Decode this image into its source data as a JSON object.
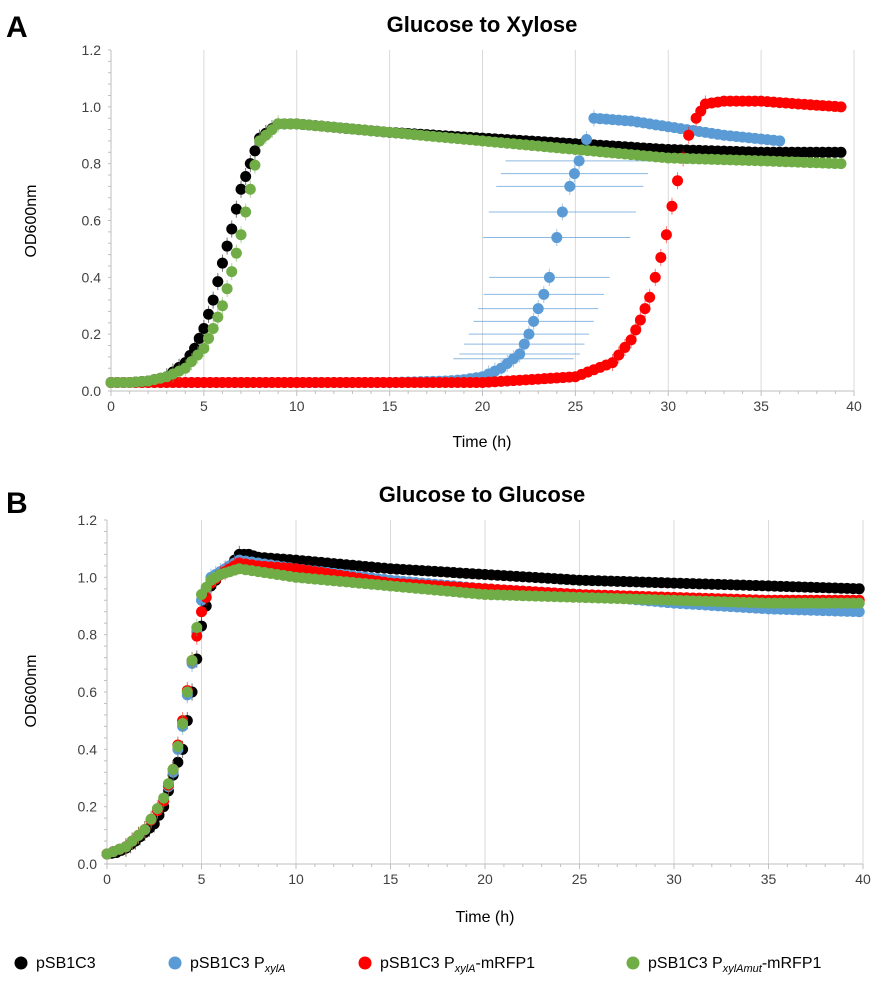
{
  "colors": {
    "pSB1C3": "#000000",
    "pSB1C3 PxylA": "#5B9BD5",
    "pSB1C3 PxylA-mRFP1": "#FF0000",
    "pSB1C3 PxylAmut-mRFP1": "#70AD47"
  },
  "legend": [
    {
      "key": "pSB1C3",
      "text": "pSB1C3",
      "sub": "",
      "suffix": ""
    },
    {
      "key": "pSB1C3 PxylA",
      "text": "pSB1C3 P",
      "sub": "xylA",
      "suffix": ""
    },
    {
      "key": "pSB1C3 PxylA-mRFP1",
      "text": "pSB1C3 P",
      "sub": "xylA",
      "suffix": "-mRFP1"
    },
    {
      "key": "pSB1C3 PxylAmut-mRFP1",
      "text": "pSB1C3 P",
      "sub": "xylAmut",
      "suffix": "-mRFP1"
    }
  ],
  "chart_data": [
    {
      "panel": "A",
      "type": "scatter",
      "title": "Glucose to Xylose",
      "xlabel": "Time (h)",
      "ylabel": "OD600nm",
      "xlim": [
        0,
        40
      ],
      "ylim": [
        0,
        1.2
      ],
      "xticks": [
        0,
        5,
        10,
        15,
        20,
        25,
        30,
        35,
        40
      ],
      "yticks": [
        "0.0",
        "0.2",
        "0.4",
        "0.6",
        "0.8",
        "1.0",
        "1.2"
      ],
      "grid": "vertical",
      "series": [
        {
          "name": "pSB1C3",
          "x": [
            0,
            1,
            2,
            3,
            4,
            4.5,
            5,
            5.5,
            6,
            6.5,
            7,
            7.5,
            8,
            9,
            10,
            15,
            20,
            25,
            30,
            35,
            39.3
          ],
          "y": [
            0.03,
            0.03,
            0.035,
            0.05,
            0.1,
            0.15,
            0.22,
            0.32,
            0.45,
            0.57,
            0.71,
            0.8,
            0.89,
            0.94,
            0.94,
            0.91,
            0.89,
            0.87,
            0.85,
            0.84,
            0.84
          ]
        },
        {
          "name": "pSB1C3 PxylA",
          "x": [
            0,
            5,
            10,
            15,
            18,
            19,
            20,
            21,
            22,
            22.5,
            23,
            23.3,
            23.6,
            24,
            24.3,
            24.7,
            25.2,
            26,
            28,
            30,
            33,
            36
          ],
          "y": [
            0.03,
            0.03,
            0.03,
            0.03,
            0.035,
            0.04,
            0.05,
            0.08,
            0.13,
            0.2,
            0.29,
            0.34,
            0.4,
            0.54,
            0.63,
            0.72,
            0.81,
            0.96,
            0.95,
            0.93,
            0.9,
            0.88
          ]
        },
        {
          "name": "pSB1C3 PxylA-mRFP1",
          "x": [
            0,
            5,
            10,
            15,
            20,
            25,
            27,
            28,
            28.5,
            29,
            29.3,
            29.6,
            29.9,
            30.2,
            30.5,
            30.8,
            31.1,
            31.5,
            32,
            33,
            35,
            37,
            39.3
          ],
          "y": [
            0.03,
            0.03,
            0.03,
            0.03,
            0.03,
            0.05,
            0.1,
            0.18,
            0.25,
            0.33,
            0.4,
            0.47,
            0.55,
            0.65,
            0.74,
            0.82,
            0.9,
            0.96,
            1.01,
            1.02,
            1.02,
            1.01,
            1.0
          ]
        },
        {
          "name": "pSB1C3 PxylAmut-mRFP1",
          "x": [
            0,
            1,
            2,
            3,
            4,
            5,
            5.5,
            6,
            6.5,
            7,
            7.5,
            8,
            9,
            10,
            15,
            20,
            25,
            30,
            35,
            39.3
          ],
          "y": [
            0.03,
            0.03,
            0.035,
            0.05,
            0.08,
            0.15,
            0.22,
            0.3,
            0.42,
            0.55,
            0.71,
            0.88,
            0.94,
            0.94,
            0.91,
            0.88,
            0.85,
            0.82,
            0.81,
            0.8
          ]
        }
      ]
    },
    {
      "panel": "B",
      "type": "scatter",
      "title": "Glucose to Glucose",
      "xlabel": "Time (h)",
      "ylabel": "OD600nm",
      "xlim": [
        0,
        40
      ],
      "ylim": [
        0,
        1.2
      ],
      "xticks": [
        0,
        5,
        10,
        15,
        20,
        25,
        30,
        35,
        40
      ],
      "yticks": [
        "0.0",
        "0.2",
        "0.4",
        "0.6",
        "0.8",
        "1.0",
        "1.2"
      ],
      "grid": "vertical",
      "series": [
        {
          "name": "pSB1C3",
          "x": [
            0,
            0.5,
            1,
            1.5,
            2,
            2.5,
            3,
            3.5,
            4,
            4.5,
            5,
            5.5,
            6,
            6.5,
            7,
            7.5,
            8,
            10,
            15,
            20,
            25,
            30,
            35,
            39.8
          ],
          "y": [
            0.035,
            0.04,
            0.055,
            0.08,
            0.11,
            0.14,
            0.2,
            0.31,
            0.4,
            0.6,
            0.83,
            0.97,
            1.01,
            1.04,
            1.08,
            1.08,
            1.07,
            1.06,
            1.03,
            1.01,
            0.99,
            0.98,
            0.97,
            0.96
          ]
        },
        {
          "name": "pSB1C3 PxylA",
          "x": [
            0,
            1,
            2,
            3,
            3.5,
            4,
            4.5,
            5,
            5.5,
            6,
            6.5,
            7,
            8,
            10,
            15,
            20,
            25,
            30,
            35,
            39.8
          ],
          "y": [
            0.035,
            0.06,
            0.12,
            0.22,
            0.32,
            0.48,
            0.7,
            0.92,
            1.0,
            1.02,
            1.04,
            1.06,
            1.05,
            1.03,
            0.99,
            0.96,
            0.94,
            0.91,
            0.89,
            0.88
          ]
        },
        {
          "name": "pSB1C3 PxylA-mRFP1",
          "x": [
            0,
            1,
            2,
            3,
            3.5,
            4,
            4.5,
            5,
            5.5,
            6,
            6.5,
            7,
            8,
            10,
            15,
            20,
            25,
            30,
            35,
            39.8
          ],
          "y": [
            0.035,
            0.06,
            0.12,
            0.22,
            0.33,
            0.5,
            0.71,
            0.88,
            0.98,
            1.01,
            1.03,
            1.05,
            1.04,
            1.03,
            0.98,
            0.96,
            0.94,
            0.93,
            0.92,
            0.92
          ]
        },
        {
          "name": "pSB1C3 PxylAmut-mRFP1",
          "x": [
            0,
            1,
            2,
            3,
            3.5,
            4,
            4.5,
            5,
            5.5,
            6,
            6.5,
            7,
            8,
            10,
            15,
            20,
            25,
            30,
            35,
            39.8
          ],
          "y": [
            0.035,
            0.06,
            0.12,
            0.23,
            0.33,
            0.49,
            0.71,
            0.94,
            0.99,
            1.01,
            1.02,
            1.03,
            1.02,
            1.0,
            0.97,
            0.94,
            0.93,
            0.92,
            0.91,
            0.91
          ]
        }
      ]
    }
  ]
}
